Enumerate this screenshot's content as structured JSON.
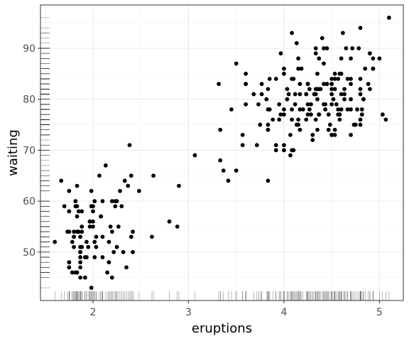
{
  "chart_data": {
    "type": "scatter",
    "title": "",
    "xlabel": "eruptions",
    "ylabel": "waiting",
    "xlim": [
      1.45,
      5.25
    ],
    "ylim": [
      40.5,
      98.5
    ],
    "x_ticks": [
      2,
      3,
      4,
      5
    ],
    "y_ticks": [
      50,
      60,
      70,
      80,
      90
    ],
    "grid": true,
    "rug": true,
    "marker_color": "#000000",
    "rug_color": "#000000",
    "points": [
      [
        3.6,
        79
      ],
      [
        1.8,
        54
      ],
      [
        3.333,
        74
      ],
      [
        2.283,
        62
      ],
      [
        4.533,
        85
      ],
      [
        2.883,
        55
      ],
      [
        4.7,
        88
      ],
      [
        3.6,
        85
      ],
      [
        1.95,
        51
      ],
      [
        4.35,
        85
      ],
      [
        1.833,
        54
      ],
      [
        3.917,
        84
      ],
      [
        4.2,
        78
      ],
      [
        1.75,
        47
      ],
      [
        4.7,
        83
      ],
      [
        2.167,
        52
      ],
      [
        1.75,
        62
      ],
      [
        4.8,
        84
      ],
      [
        1.6,
        52
      ],
      [
        4.25,
        79
      ],
      [
        1.8,
        51
      ],
      [
        1.75,
        47
      ],
      [
        3.45,
        78
      ],
      [
        3.067,
        69
      ],
      [
        4.533,
        74
      ],
      [
        3.6,
        83
      ],
      [
        1.967,
        55
      ],
      [
        4.083,
        76
      ],
      [
        3.85,
        78
      ],
      [
        4.433,
        79
      ],
      [
        4.3,
        73
      ],
      [
        4.467,
        77
      ],
      [
        3.367,
        66
      ],
      [
        4.033,
        80
      ],
      [
        3.833,
        74
      ],
      [
        2.017,
        52
      ],
      [
        1.867,
        48
      ],
      [
        4.833,
        80
      ],
      [
        1.833,
        59
      ],
      [
        4.783,
        90
      ],
      [
        4.35,
        80
      ],
      [
        1.883,
        58
      ],
      [
        4.567,
        84
      ],
      [
        1.75,
        58
      ],
      [
        4.533,
        73
      ],
      [
        3.317,
        83
      ],
      [
        3.833,
        64
      ],
      [
        2.1,
        53
      ],
      [
        4.633,
        82
      ],
      [
        2,
        59
      ],
      [
        4.8,
        75
      ],
      [
        4.716,
        90
      ],
      [
        1.833,
        54
      ],
      [
        4.833,
        80
      ],
      [
        1.733,
        54
      ],
      [
        4.883,
        83
      ],
      [
        3.717,
        71
      ],
      [
        1.667,
        64
      ],
      [
        4.567,
        77
      ],
      [
        4.317,
        81
      ],
      [
        2.233,
        59
      ],
      [
        4.5,
        84
      ],
      [
        1.75,
        48
      ],
      [
        4.8,
        82
      ],
      [
        1.817,
        60
      ],
      [
        4.4,
        92
      ],
      [
        4.167,
        78
      ],
      [
        4.7,
        78
      ],
      [
        2.067,
        65
      ],
      [
        4.7,
        73
      ],
      [
        4.033,
        82
      ],
      [
        1.967,
        56
      ],
      [
        4.5,
        79
      ],
      [
        4,
        71
      ],
      [
        1.983,
        62
      ],
      [
        5.067,
        76
      ],
      [
        2.017,
        60
      ],
      [
        4.567,
        78
      ],
      [
        3.883,
        76
      ],
      [
        3.6,
        83
      ],
      [
        4.133,
        75
      ],
      [
        4.333,
        82
      ],
      [
        4.1,
        70
      ],
      [
        2.633,
        65
      ],
      [
        4.067,
        73
      ],
      [
        4.933,
        88
      ],
      [
        3.95,
        76
      ],
      [
        4.517,
        80
      ],
      [
        2.167,
        48
      ],
      [
        4,
        86
      ],
      [
        2.2,
        60
      ],
      [
        4.333,
        90
      ],
      [
        1.867,
        50
      ],
      [
        4.817,
        78
      ],
      [
        1.833,
        63
      ],
      [
        4.3,
        72
      ],
      [
        4.667,
        84
      ],
      [
        3.75,
        75
      ],
      [
        1.867,
        51
      ],
      [
        4.9,
        82
      ],
      [
        2.483,
        62
      ],
      [
        4.367,
        88
      ],
      [
        2.1,
        49
      ],
      [
        4.5,
        83
      ],
      [
        4.05,
        81
      ],
      [
        1.867,
        47
      ],
      [
        4.7,
        84
      ],
      [
        1.783,
        52
      ],
      [
        4.85,
        86
      ],
      [
        3.683,
        81
      ],
      [
        4.733,
        75
      ],
      [
        2.3,
        59
      ],
      [
        4.9,
        89
      ],
      [
        4.417,
        79
      ],
      [
        1.7,
        59
      ],
      [
        4.633,
        81
      ],
      [
        2.317,
        50
      ],
      [
        4.6,
        85
      ],
      [
        1.817,
        59
      ],
      [
        4.417,
        87
      ],
      [
        2.617,
        53
      ],
      [
        4.067,
        69
      ],
      [
        4.25,
        77
      ],
      [
        1.967,
        56
      ],
      [
        4.6,
        88
      ],
      [
        3.767,
        81
      ],
      [
        1.917,
        45
      ],
      [
        4.5,
        82
      ],
      [
        2.267,
        55
      ],
      [
        4.65,
        90
      ],
      [
        1.867,
        45
      ],
      [
        4.167,
        83
      ],
      [
        2.8,
        56
      ],
      [
        4.333,
        89
      ],
      [
        1.833,
        46
      ],
      [
        4.383,
        82
      ],
      [
        1.883,
        51
      ],
      [
        4.933,
        86
      ],
      [
        2.033,
        53
      ],
      [
        3.733,
        79
      ],
      [
        4.233,
        81
      ],
      [
        2.233,
        60
      ],
      [
        4.533,
        82
      ],
      [
        4.817,
        77
      ],
      [
        4.333,
        76
      ],
      [
        1.983,
        59
      ],
      [
        4.633,
        80
      ],
      [
        2.017,
        49
      ],
      [
        5.1,
        96
      ],
      [
        1.8,
        53
      ],
      [
        5.033,
        77
      ],
      [
        4,
        77
      ],
      [
        2.4,
        65
      ],
      [
        4.6,
        81
      ],
      [
        3.567,
        71
      ],
      [
        4,
        70
      ],
      [
        4.5,
        81
      ],
      [
        4.083,
        93
      ],
      [
        1.8,
        53
      ],
      [
        3.967,
        89
      ],
      [
        2.2,
        45
      ],
      [
        4.15,
        86
      ],
      [
        2,
        58
      ],
      [
        3.833,
        78
      ],
      [
        3.5,
        66
      ],
      [
        4.583,
        76
      ],
      [
        2.367,
        63
      ],
      [
        5,
        88
      ],
      [
        1.933,
        52
      ],
      [
        4.617,
        93
      ],
      [
        1.917,
        49
      ],
      [
        2.083,
        57
      ],
      [
        4.583,
        77
      ],
      [
        3.333,
        68
      ],
      [
        4.167,
        81
      ],
      [
        4.333,
        81
      ],
      [
        4.5,
        73
      ],
      [
        2.417,
        50
      ],
      [
        4,
        85
      ],
      [
        4.167,
        74
      ],
      [
        1.883,
        55
      ],
      [
        4.583,
        77
      ],
      [
        4.25,
        83
      ],
      [
        3.767,
        83
      ],
      [
        2.033,
        51
      ],
      [
        4.433,
        78
      ],
      [
        4.083,
        84
      ],
      [
        1.833,
        46
      ],
      [
        4.417,
        83
      ],
      [
        2.183,
        55
      ],
      [
        4.8,
        81
      ],
      [
        1.833,
        57
      ],
      [
        4.8,
        76
      ],
      [
        4.1,
        84
      ],
      [
        3.966,
        77
      ],
      [
        4.233,
        81
      ],
      [
        3.5,
        87
      ],
      [
        4.366,
        77
      ],
      [
        2.25,
        51
      ],
      [
        4.667,
        78
      ],
      [
        2.1,
        60
      ],
      [
        4.35,
        82
      ],
      [
        4.133,
        91
      ],
      [
        1.867,
        53
      ],
      [
        4.6,
        78
      ],
      [
        1.783,
        46
      ],
      [
        4.367,
        77
      ],
      [
        3.85,
        84
      ],
      [
        1.933,
        49
      ],
      [
        4.5,
        83
      ],
      [
        2.383,
        71
      ],
      [
        4.7,
        80
      ],
      [
        1.867,
        49
      ],
      [
        3.833,
        75
      ],
      [
        3.417,
        64
      ],
      [
        4.233,
        76
      ],
      [
        2.4,
        53
      ],
      [
        4.8,
        94
      ],
      [
        2,
        55
      ],
      [
        4.15,
        76
      ],
      [
        1.867,
        50
      ],
      [
        4.267,
        82
      ],
      [
        1.75,
        54
      ],
      [
        4.483,
        75
      ],
      [
        4,
        78
      ],
      [
        4.117,
        79
      ],
      [
        4.083,
        78
      ],
      [
        4.267,
        78
      ],
      [
        3.917,
        70
      ],
      [
        4.55,
        79
      ],
      [
        4.083,
        70
      ],
      [
        2.417,
        54
      ],
      [
        4.183,
        86
      ],
      [
        2.217,
        50
      ],
      [
        4.45,
        90
      ],
      [
        1.883,
        54
      ],
      [
        1.85,
        54
      ],
      [
        4.283,
        77
      ],
      [
        3.95,
        79
      ],
      [
        2.333,
        64
      ],
      [
        4.15,
        75
      ],
      [
        2.35,
        47
      ],
      [
        4.933,
        86
      ],
      [
        2.9,
        63
      ],
      [
        4.583,
        85
      ],
      [
        3.833,
        82
      ],
      [
        2.083,
        57
      ],
      [
        4.367,
        82
      ],
      [
        2.133,
        67
      ],
      [
        4.35,
        74
      ],
      [
        2.2,
        54
      ],
      [
        4.45,
        83
      ],
      [
        3.567,
        73
      ],
      [
        4.5,
        73
      ],
      [
        4.15,
        88
      ],
      [
        3.817,
        80
      ],
      [
        3.917,
        71
      ],
      [
        4.45,
        83
      ],
      [
        2,
        56
      ],
      [
        4.283,
        79
      ],
      [
        4.767,
        78
      ],
      [
        4.533,
        84
      ],
      [
        1.85,
        58
      ],
      [
        4.25,
        83
      ],
      [
        1.983,
        43
      ],
      [
        2.25,
        60
      ],
      [
        4.75,
        75
      ],
      [
        4.117,
        81
      ],
      [
        2.15,
        46
      ],
      [
        4.417,
        90
      ],
      [
        1.817,
        46
      ],
      [
        4.467,
        74
      ]
    ]
  }
}
